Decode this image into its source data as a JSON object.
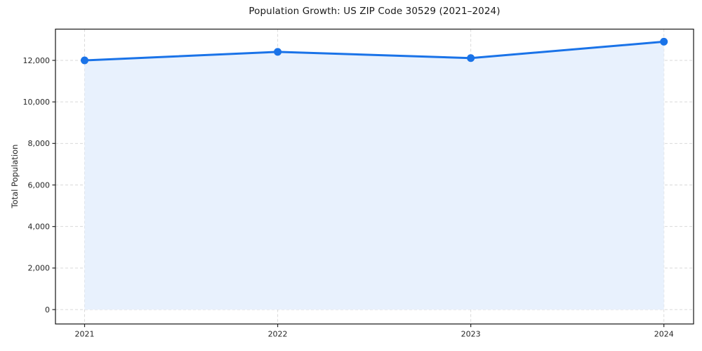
{
  "chart_data": {
    "type": "line",
    "title": "Population Growth: US ZIP Code 30529 (2021–2024)",
    "xlabel": "",
    "ylabel": "Total Population",
    "categories": [
      "2021",
      "2022",
      "2023",
      "2024"
    ],
    "series": [
      {
        "name": "Total Population",
        "values": [
          12000,
          12410,
          12110,
          12900
        ]
      }
    ],
    "yticks": [
      0,
      2000,
      4000,
      6000,
      8000,
      10000,
      12000
    ],
    "ylim": [
      0,
      13500
    ],
    "grid": true,
    "grid_style": "dashed",
    "legend": false,
    "marker": "circle",
    "area_fill": true,
    "colors": {
      "line": "#1a73e8",
      "marker": "#1a73e8",
      "area": "#e8f1fd",
      "gridline": "#d9d9d9",
      "spine": "#262626",
      "text": "#262626"
    }
  }
}
